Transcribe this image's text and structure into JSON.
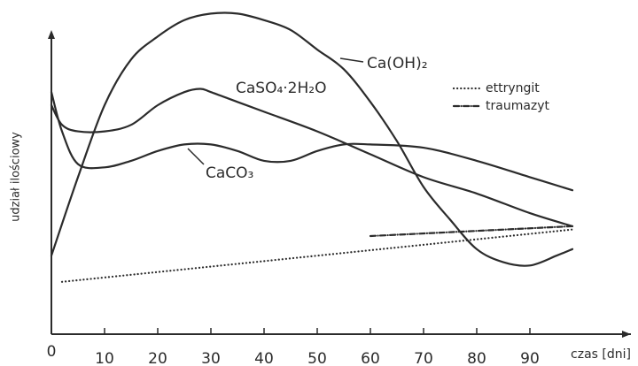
{
  "chart_data": {
    "type": "line",
    "x_label": "czas [dni]",
    "y_label": "udział ilościowy",
    "xlim": [
      0,
      100
    ],
    "xticks": [
      0,
      10,
      20,
      30,
      40,
      50,
      60,
      70,
      80,
      90
    ],
    "ylim": [
      0,
      100
    ],
    "series": [
      {
        "name": "Ca(OH)₂",
        "color": "#2b2b2b",
        "style": "solid",
        "x": [
          0,
          5,
          10,
          15,
          20,
          25,
          30,
          35,
          40,
          45,
          50,
          55,
          60,
          65,
          70,
          75,
          80,
          85,
          90,
          95,
          98
        ],
        "values": [
          24,
          48,
          70,
          84,
          91,
          96,
          98,
          98,
          96,
          93,
          87,
          81,
          71,
          59,
          45,
          35,
          26,
          22,
          21,
          24,
          26
        ]
      },
      {
        "name": "CaSO₄·2H₂O",
        "color": "#2b2b2b",
        "style": "solid",
        "x": [
          0,
          2,
          5,
          10,
          15,
          20,
          25,
          28,
          30,
          35,
          40,
          50,
          60,
          70,
          80,
          90,
          98
        ],
        "values": [
          70,
          64,
          62,
          62,
          64,
          70,
          74,
          75,
          74,
          71,
          68,
          62,
          55,
          48,
          43,
          37,
          33
        ]
      },
      {
        "name": "CaCO₃",
        "color": "#2b2b2b",
        "style": "solid",
        "x": [
          0,
          2,
          5,
          10,
          15,
          20,
          25,
          30,
          35,
          40,
          45,
          50,
          55,
          60,
          70,
          80,
          90,
          98
        ],
        "values": [
          74,
          62,
          52,
          51,
          53,
          56,
          58,
          58,
          56,
          53,
          53,
          56,
          58,
          58,
          57,
          53,
          48,
          44
        ]
      },
      {
        "name": "ettryngit",
        "color": "#2b2b2b",
        "style": "dotted",
        "x": [
          2,
          98
        ],
        "values": [
          16,
          32
        ]
      },
      {
        "name": "traumazyt",
        "color": "#2b2b2b",
        "style": "dashdot",
        "x": [
          60,
          98
        ],
        "values": [
          30,
          33
        ]
      }
    ]
  }
}
